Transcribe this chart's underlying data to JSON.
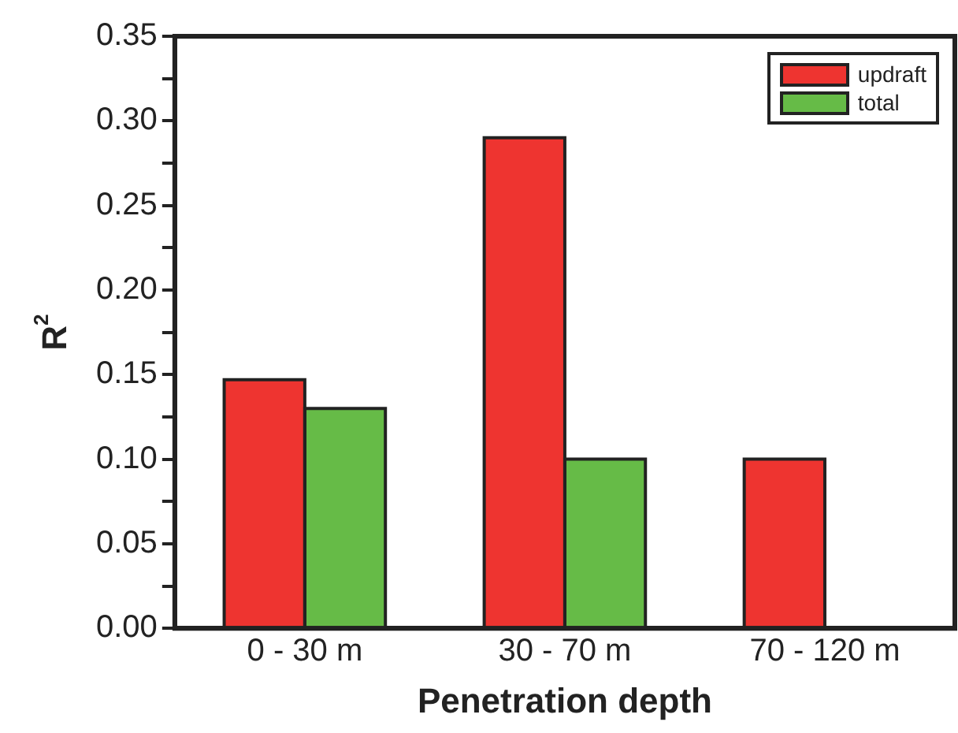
{
  "chart_data": {
    "type": "bar",
    "xlabel": "Penetration depth",
    "ylabel": "R$^{2}$",
    "categories": [
      "0 - 30 m",
      "30 - 70 m",
      "70 - 120 m"
    ],
    "series": [
      {
        "name": "updraft",
        "color": "#ee3430",
        "values": [
          0.147,
          0.29,
          0.1
        ]
      },
      {
        "name": "total",
        "color": "#66bb47",
        "values": [
          0.13,
          0.1,
          null
        ]
      }
    ],
    "ylim": [
      0,
      0.35
    ],
    "yticks": [
      {
        "value": 0,
        "label": "0.00"
      },
      {
        "value": 0.025,
        "label": null
      },
      {
        "value": 0.05,
        "label": "0.05"
      },
      {
        "value": 0.075,
        "label": null
      },
      {
        "value": 0.1,
        "label": "0.10"
      },
      {
        "value": 0.125,
        "label": null
      },
      {
        "value": 0.15,
        "label": "0.15"
      },
      {
        "value": 0.175,
        "label": null
      },
      {
        "value": 0.2,
        "label": "0.20"
      },
      {
        "value": 0.225,
        "label": null
      },
      {
        "value": 0.25,
        "label": "0.25"
      },
      {
        "value": 0.275,
        "label": null
      },
      {
        "value": 0.3,
        "label": "0.30"
      },
      {
        "value": 0.325,
        "label": null
      },
      {
        "value": 0.35,
        "label": "0.35"
      }
    ],
    "grid": false,
    "legend": "top right"
  }
}
